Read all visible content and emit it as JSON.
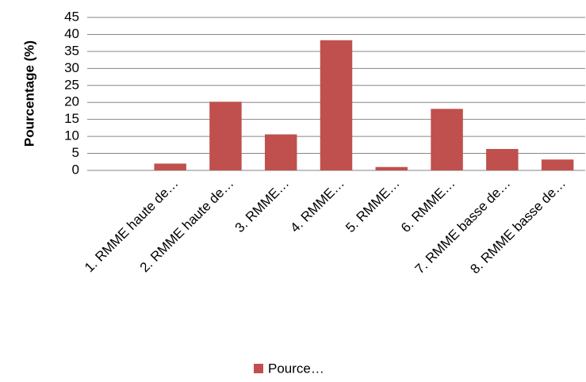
{
  "chart_data": {
    "type": "bar",
    "y_label": "Pourcentage (%)",
    "categories": [
      null,
      "1. RMME haute de…",
      "2. RMME haute de…",
      "3. RMME…",
      "4. RMME…",
      "5. RMME…",
      "6. RMME…",
      "7. RMME basse de…",
      "8. RMME basse de…"
    ],
    "series": [
      {
        "name": "Pource…",
        "color": "#c0504d",
        "values": [
          null,
          2.0,
          20.2,
          10.6,
          38.3,
          1.0,
          18.1,
          6.3,
          3.2
        ]
      }
    ],
    "ylim": [
      0,
      45
    ],
    "yticks": [
      0,
      5,
      10,
      15,
      20,
      25,
      30,
      35,
      40,
      45
    ],
    "grid": true,
    "legend": "bottom"
  }
}
